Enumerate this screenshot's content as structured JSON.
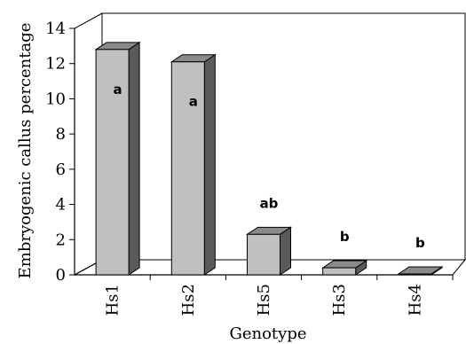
{
  "chart_data": {
    "type": "bar",
    "title": "",
    "xlabel": "Genotype",
    "ylabel": "Embryogenic callus percentage",
    "categories": [
      "Hs1",
      "Hs2",
      "Hs5",
      "Hs3",
      "Hs4"
    ],
    "values": [
      12.8,
      12.1,
      2.3,
      0.4,
      0.05
    ],
    "significance_labels": [
      "a",
      "a",
      "ab",
      "b",
      "b"
    ],
    "ylim": [
      0,
      14
    ],
    "yticks": [
      "0",
      "2",
      "4",
      "6",
      "8",
      "10",
      "12",
      "14"
    ],
    "grid": false,
    "legend": "none",
    "style": "3d-column",
    "colors": {
      "bar_front": "#c0c0c0",
      "bar_side": "#5a5a5a",
      "bar_top": "#8a8a8a",
      "axes": "#000000",
      "back_wall": "#ffffff"
    }
  }
}
